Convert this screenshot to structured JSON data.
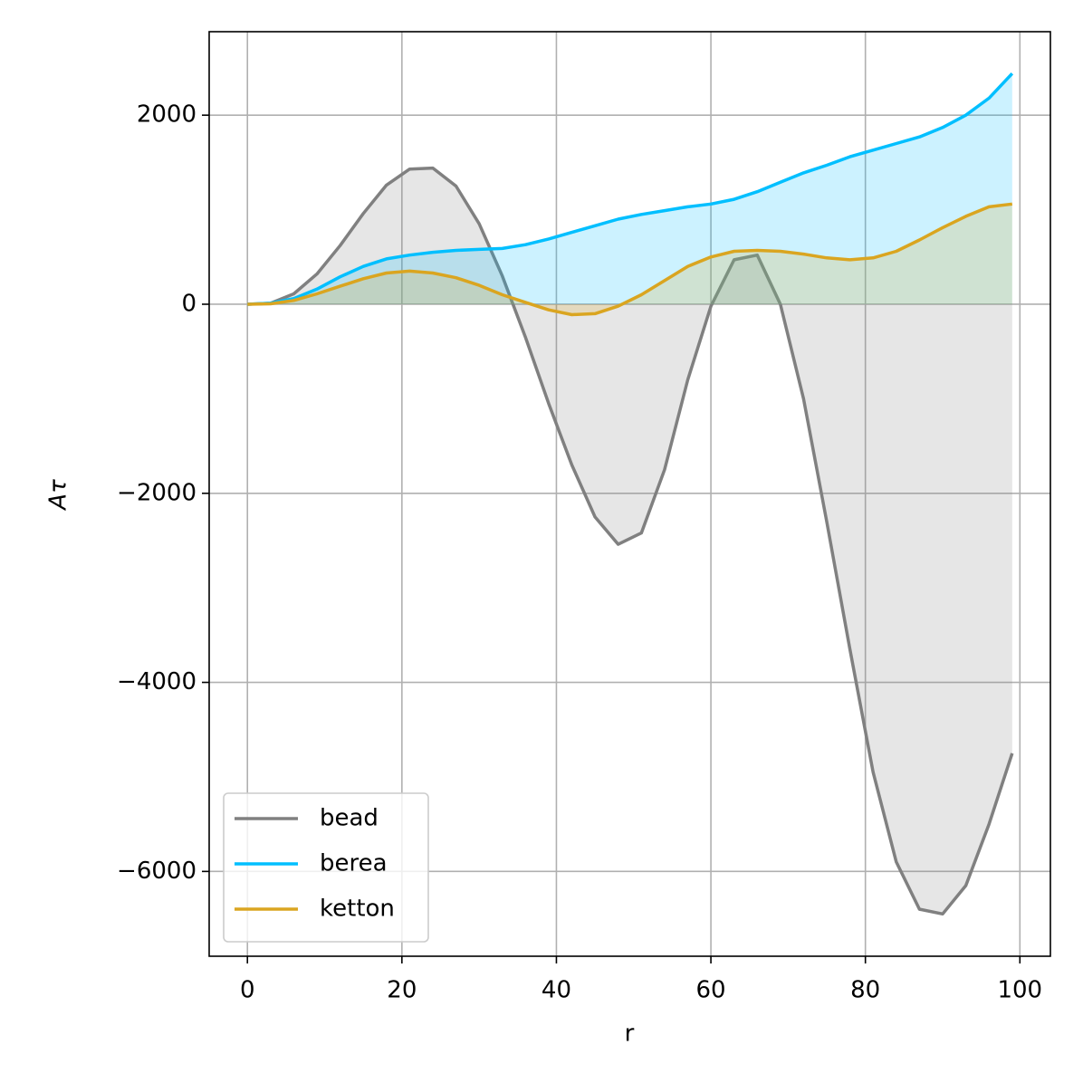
{
  "chart_data": {
    "type": "line",
    "fill_to_zero": true,
    "xlabel": "r",
    "ylabel": "Aτ",
    "x": [
      0,
      3,
      6,
      9,
      12,
      15,
      18,
      21,
      24,
      27,
      30,
      33,
      36,
      39,
      42,
      45,
      48,
      51,
      54,
      57,
      60,
      63,
      66,
      69,
      72,
      75,
      78,
      81,
      84,
      87,
      90,
      93,
      96,
      99
    ],
    "series": [
      {
        "name": "bead",
        "color": "#808080",
        "values": [
          0,
          10,
          110,
          320,
          620,
          960,
          1260,
          1430,
          1440,
          1250,
          850,
          300,
          -350,
          -1050,
          -1700,
          -2250,
          -2540,
          -2420,
          -1750,
          -800,
          -20,
          470,
          520,
          0,
          -1000,
          -2300,
          -3650,
          -4950,
          -5900,
          -6400,
          -6450,
          -6150,
          -5500,
          -4750
        ]
      },
      {
        "name": "berea",
        "color": "#00bfff",
        "values": [
          0,
          10,
          60,
          160,
          290,
          400,
          480,
          520,
          550,
          570,
          580,
          590,
          630,
          690,
          760,
          830,
          900,
          950,
          990,
          1030,
          1060,
          1110,
          1190,
          1290,
          1390,
          1470,
          1560,
          1630,
          1700,
          1770,
          1870,
          2000,
          2180,
          2440
        ]
      },
      {
        "name": "ketton",
        "color": "#daa520",
        "values": [
          0,
          5,
          40,
          110,
          190,
          270,
          330,
          350,
          330,
          280,
          200,
          100,
          20,
          -60,
          -110,
          -100,
          -20,
          100,
          250,
          400,
          500,
          560,
          570,
          560,
          530,
          490,
          470,
          490,
          560,
          680,
          810,
          930,
          1030,
          1060
        ]
      }
    ],
    "xlim": [
      -4.95,
      103.95
    ],
    "ylim": [
      -6897,
      2883
    ],
    "xticks": [
      0,
      20,
      40,
      60,
      80,
      100
    ],
    "yticks": [
      {
        "value": -6000,
        "label": "−6000"
      },
      {
        "value": -4000,
        "label": "−4000"
      },
      {
        "value": -2000,
        "label": "−2000"
      },
      0,
      2000
    ],
    "grid": true,
    "legend": "lower left"
  }
}
